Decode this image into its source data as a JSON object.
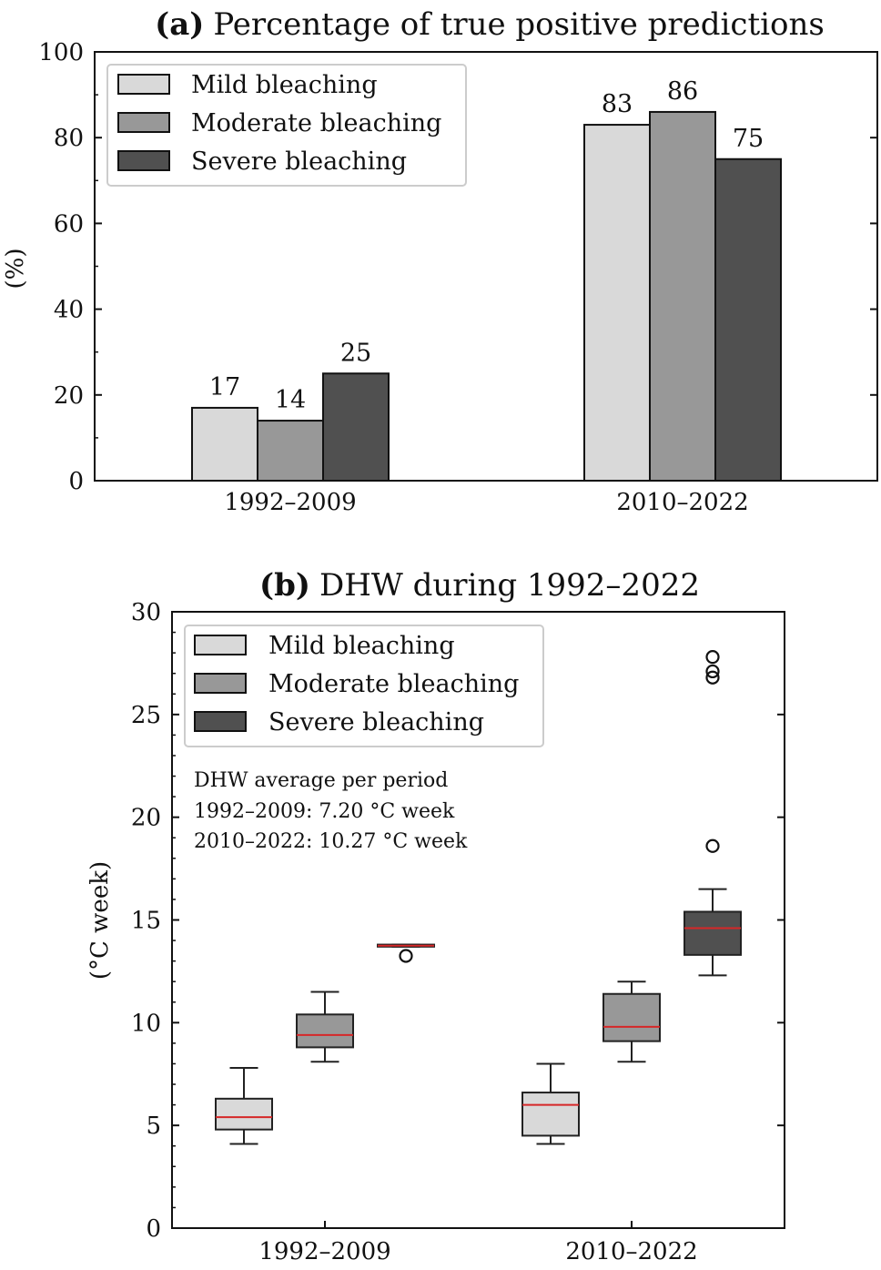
{
  "colors": {
    "mild": "#d9d9d9",
    "moderate": "#989898",
    "severe": "#505050",
    "median": "#d62728",
    "edge": "#111111",
    "legend_border": "#cccccc"
  },
  "chart_data": [
    {
      "type": "bar",
      "panel_label": "(a)",
      "title": "Percentage of true positive predictions",
      "ylabel": "(%)",
      "xlabel": "",
      "categories": [
        "1992–2009",
        "2010–2022"
      ],
      "ylim": [
        0,
        100
      ],
      "yticks": [
        0,
        20,
        40,
        60,
        80,
        100
      ],
      "legend_position": "top-left",
      "grid": false,
      "series": [
        {
          "name": "Mild bleaching",
          "values": [
            17,
            83
          ],
          "labels": [
            "17",
            "83"
          ]
        },
        {
          "name": "Moderate bleaching",
          "values": [
            14,
            86
          ],
          "labels": [
            "14",
            "86"
          ]
        },
        {
          "name": "Severe bleaching",
          "values": [
            25,
            75
          ],
          "labels": [
            "25",
            "75"
          ]
        }
      ]
    },
    {
      "type": "box",
      "panel_label": "(b)",
      "title": "DHW during 1992–2022",
      "ylabel": "(°C week)",
      "xlabel": "",
      "categories": [
        "1992–2009",
        "2010–2022"
      ],
      "ylim": [
        0,
        30
      ],
      "yticks": [
        0,
        5,
        10,
        15,
        20,
        25,
        30
      ],
      "legend_position": "top-left",
      "grid": false,
      "annotation": {
        "heading": "DHW average per period",
        "lines": [
          "1992–2009: 7.20 °C week",
          "2010–2022: 10.27 °C week"
        ]
      },
      "series": [
        {
          "name": "Mild bleaching",
          "boxes": [
            {
              "whisker_low": 4.1,
              "q1": 4.8,
              "median": 5.4,
              "q3": 6.3,
              "whisker_high": 7.8,
              "outliers": []
            },
            {
              "whisker_low": 4.1,
              "q1": 4.5,
              "median": 6.0,
              "q3": 6.6,
              "whisker_high": 8.0,
              "outliers": []
            }
          ]
        },
        {
          "name": "Moderate bleaching",
          "boxes": [
            {
              "whisker_low": 8.1,
              "q1": 8.8,
              "median": 9.4,
              "q3": 10.4,
              "whisker_high": 11.5,
              "outliers": []
            },
            {
              "whisker_low": 8.1,
              "q1": 9.1,
              "median": 9.8,
              "q3": 11.4,
              "whisker_high": 12.0,
              "outliers": []
            }
          ]
        },
        {
          "name": "Severe bleaching",
          "boxes": [
            {
              "whisker_low": 13.7,
              "q1": 13.7,
              "median": 13.75,
              "q3": 13.8,
              "whisker_high": 13.8,
              "outliers": [
                13.25
              ]
            },
            {
              "whisker_low": 12.3,
              "q1": 13.3,
              "median": 14.6,
              "q3": 15.4,
              "whisker_high": 16.5,
              "outliers": [
                18.6,
                26.8,
                27.1,
                27.8
              ]
            }
          ]
        }
      ]
    }
  ]
}
